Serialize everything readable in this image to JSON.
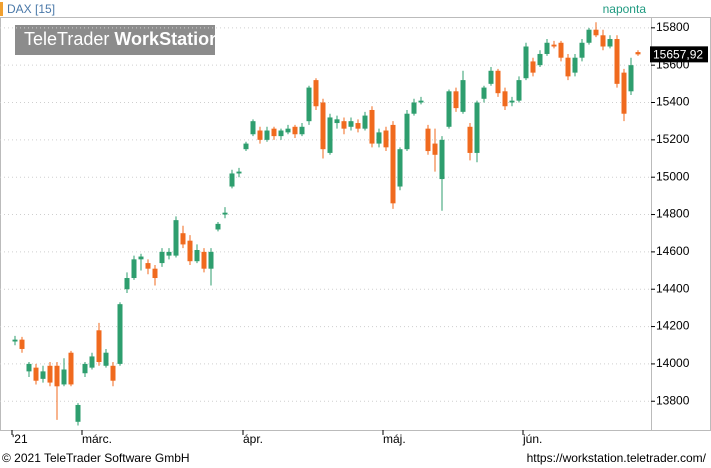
{
  "chart_data": {
    "type": "candlestick",
    "instrument": "DAX [15]",
    "interval": "naponta",
    "watermark": [
      "TeleTrader",
      "WorkStation"
    ],
    "footer_left": "© 2021 TeleTrader Software GmbH",
    "footer_right": "https://workstation.teletrader.com/",
    "up_color": "#2e9e6e",
    "down_color": "#f06a1e",
    "last_price": {
      "value": 15657.92,
      "label": "15657,92"
    },
    "ylim": [
      13646,
      15858
    ],
    "yticks": [
      13800,
      14000,
      14200,
      14400,
      14600,
      14800,
      15000,
      15200,
      15400,
      15600,
      15800
    ],
    "grid": true,
    "categories": [
      "'21",
      null,
      null,
      null,
      null,
      null,
      null,
      null,
      null,
      null,
      "márc.",
      null,
      null,
      null,
      null,
      null,
      null,
      null,
      null,
      null,
      null,
      null,
      null,
      null,
      null,
      null,
      null,
      null,
      null,
      null,
      null,
      null,
      null,
      "ápr.",
      null,
      null,
      null,
      null,
      null,
      null,
      null,
      null,
      null,
      null,
      null,
      null,
      null,
      null,
      null,
      null,
      null,
      null,
      null,
      "máj.",
      null,
      null,
      null,
      null,
      null,
      null,
      null,
      null,
      null,
      null,
      null,
      null,
      null,
      null,
      null,
      null,
      null,
      null,
      null,
      "jún.",
      null,
      null,
      null,
      null,
      null,
      null,
      null,
      null,
      null,
      null,
      null,
      null,
      null,
      null,
      null,
      null
    ],
    "open": [
      14120,
      14130,
      13960,
      13980,
      13920,
      13990,
      13990,
      13890,
      14060,
      13690,
      13950,
      13980,
      14180,
      13990,
      13990,
      14000,
      14400,
      14460,
      14560,
      14540,
      14510,
      14540,
      14580,
      14580,
      14700,
      14660,
      14550,
      14600,
      14510,
      14720,
      14800,
      14950,
      15020,
      15150,
      15230,
      15250,
      15200,
      15260,
      15220,
      15240,
      15270,
      15230,
      15300,
      15520,
      15400,
      15130,
      15290,
      15300,
      15270,
      15290,
      15260,
      15360,
      15180,
      15250,
      15280,
      14950,
      15150,
      15340,
      15400,
      15260,
      15180,
      14990,
      15270,
      15460,
      15350,
      15270,
      15130,
      15420,
      15500,
      15570,
      15460,
      15400,
      15410,
      15530,
      15620,
      15600,
      15660,
      15710,
      15720,
      15640,
      15560,
      15640,
      15720,
      15790,
      15760,
      15700,
      15740,
      15560,
      15460,
      15670
    ],
    "high": [
      14150,
      14145,
      14010,
      14000,
      13990,
      14010,
      14010,
      14030,
      14070,
      13790,
      14010,
      14060,
      14220,
      14080,
      14010,
      14330,
      14490,
      14580,
      14590,
      14560,
      14530,
      14620,
      14620,
      14790,
      14740,
      14690,
      14640,
      14620,
      14620,
      14760,
      14840,
      15040,
      15050,
      15190,
      15310,
      15270,
      15270,
      15270,
      15260,
      15280,
      15280,
      15290,
      15490,
      15530,
      15420,
      15340,
      15330,
      15320,
      15320,
      15310,
      15350,
      15380,
      15260,
      15270,
      15300,
      15160,
      15360,
      15420,
      15430,
      15280,
      15260,
      15220,
      15470,
      15480,
      15570,
      15290,
      15410,
      15490,
      15590,
      15580,
      15480,
      15430,
      15540,
      15720,
      15640,
      15680,
      15740,
      15730,
      15730,
      15660,
      15660,
      15740,
      15800,
      15830,
      15790,
      15760,
      15760,
      15580,
      15640,
      15680
    ],
    "low": [
      14100,
      14060,
      13930,
      13890,
      13900,
      13880,
      13700,
      13880,
      13880,
      13670,
      13930,
      13970,
      13990,
      13980,
      13880,
      13990,
      14380,
      14450,
      14500,
      14480,
      14420,
      14520,
      14560,
      14570,
      14620,
      14530,
      14540,
      14490,
      14420,
      14710,
      14780,
      14940,
      15000,
      15140,
      15220,
      15180,
      15190,
      15200,
      15200,
      15230,
      15210,
      15220,
      15280,
      15360,
      15100,
      15120,
      15260,
      15230,
      15250,
      15240,
      15250,
      15160,
      15160,
      15140,
      14830,
      14930,
      15140,
      15330,
      15390,
      15120,
      15030,
      14820,
      15260,
      15350,
      15340,
      15090,
      15080,
      15400,
      15490,
      15430,
      15360,
      15380,
      15400,
      15520,
      15540,
      15590,
      15650,
      15690,
      15620,
      15520,
      15540,
      15620,
      15710,
      15750,
      15680,
      15690,
      15480,
      15300,
      15440,
      15650
    ],
    "close": [
      14130,
      14080,
      14000,
      13910,
      13960,
      13900,
      13880,
      13970,
      13890,
      13780,
      14000,
      14040,
      14010,
      14060,
      13910,
      14320,
      14460,
      14560,
      14575,
      14510,
      14460,
      14600,
      14600,
      14770,
      14640,
      14550,
      14610,
      14510,
      14600,
      14750,
      14810,
      15020,
      15030,
      15180,
      15300,
      15200,
      15250,
      15220,
      15250,
      15260,
      15230,
      15270,
      15480,
      15380,
      15150,
      15320,
      15310,
      15260,
      15300,
      15260,
      15330,
      15180,
      15240,
      15160,
      14860,
      15150,
      15340,
      15400,
      15410,
      15140,
      15120,
      15200,
      15460,
      15370,
      15520,
      15130,
      15400,
      15480,
      15570,
      15450,
      15380,
      15410,
      15520,
      15700,
      15560,
      15660,
      15720,
      15700,
      15640,
      15540,
      15640,
      15720,
      15790,
      15760,
      15700,
      15740,
      15500,
      15340,
      15600,
      15657.92
    ]
  }
}
